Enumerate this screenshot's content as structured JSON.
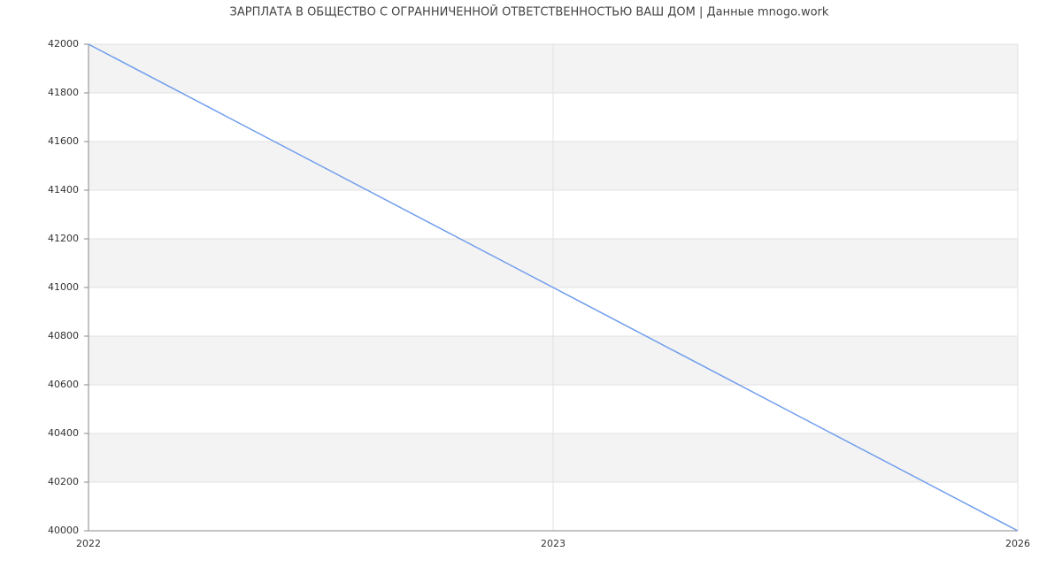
{
  "chart_data": {
    "type": "line",
    "title": "ЗАРПЛАТА В ОБЩЕСТВО С ОГРАННИЧЕННОЙ ОТВЕТСТВЕННОСТЬЮ ВАШ ДОМ | Данные mnogo.work",
    "categories": [
      "2022",
      "2023",
      "2026"
    ],
    "series": [
      {
        "color": "#6f9ded",
        "values": [
          42000,
          41000,
          40000
        ]
      }
    ],
    "ylim": [
      40000,
      42000
    ],
    "yticks": [
      40000,
      40200,
      40400,
      40600,
      40800,
      41000,
      41200,
      41400,
      41600,
      41800,
      42000
    ],
    "grid": true
  }
}
